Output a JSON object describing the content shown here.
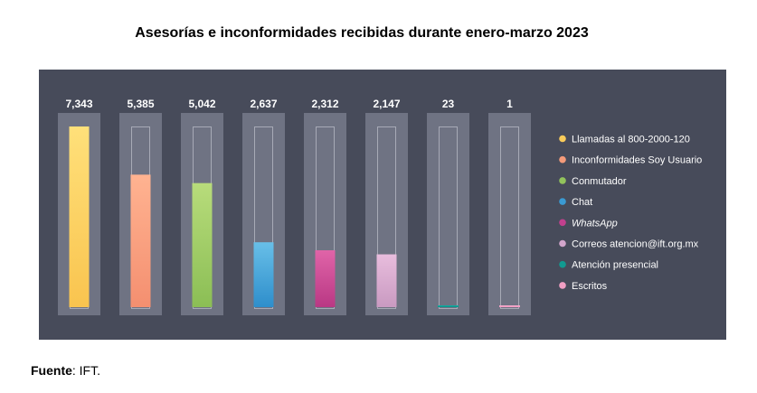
{
  "title": "Asesorías e inconformidades recibidas durante enero-marzo 2023",
  "source_label": "Fuente",
  "source_value": ": IFT.",
  "chart_data": {
    "type": "bar",
    "title": "Asesorías e inconformidades recibidas durante enero-marzo 2023",
    "categories": [
      "Llamadas al 800-2000-120",
      "Inconformidades Soy Usuario",
      "Conmutador",
      "Chat",
      "WhatsApp",
      "Correos atencion@ift.org.mx",
      "Atención presencial",
      "Escritos"
    ],
    "values": [
      7343,
      5385,
      5042,
      2637,
      2312,
      2147,
      23,
      1
    ],
    "value_labels": [
      "7,343",
      "5,385",
      "5,042",
      "2,637",
      "2,312",
      "2,147",
      "23",
      "1"
    ],
    "ylim": [
      0,
      7343
    ],
    "grid": false,
    "legend": "right",
    "colors": [
      [
        "#ffe07a",
        "#f9c44f"
      ],
      [
        "#ffb391",
        "#f48f70"
      ],
      [
        "#b8dc7b",
        "#8bbe55"
      ],
      [
        "#68bfe8",
        "#2e8ecb"
      ],
      [
        "#e064a8",
        "#b93884"
      ],
      [
        "#e8bddd",
        "#c99ac1"
      ],
      [
        "#12b3a8",
        "#0b8a82"
      ],
      [
        "#f7b4d3",
        "#ee8fba"
      ]
    ],
    "legend_dot_colors": [
      "#f9cb5a",
      "#f49b7a",
      "#92c35c",
      "#3a9ad3",
      "#c2408e",
      "#d2a5cb",
      "#119a91",
      "#f19fc4"
    ],
    "italic_legend": [
      false,
      false,
      false,
      false,
      true,
      false,
      false,
      false
    ]
  }
}
